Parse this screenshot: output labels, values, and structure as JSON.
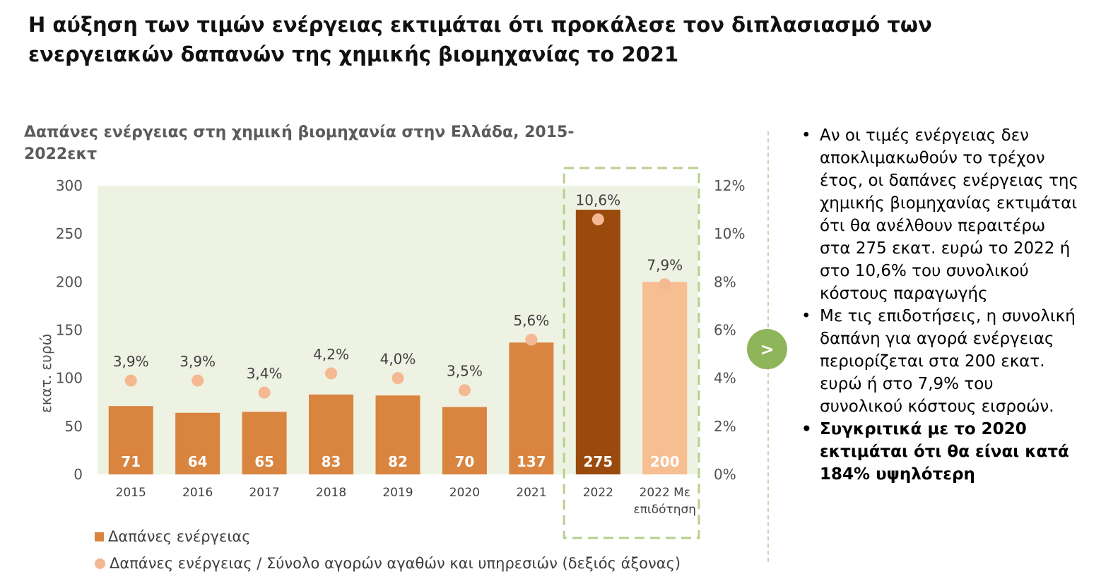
{
  "title": "Η αύξηση των τιμών ενέργειας εκτιμάται ότι προκάλεσε τον διπλασιασμό των ενεργειακών δαπανών της χημικής βιομηχανίας το 2021",
  "colors": {
    "bar": "#d9843f",
    "bar_highlight": "#9b4a0d",
    "bar_subsidy": "#f7be92",
    "dot": "#f4b893",
    "plot_bg": "#eef2e2",
    "highlight_border": "#b7cf8e",
    "accent": "#8fb55a"
  },
  "chart_data": {
    "type": "bar",
    "title": "Δαπάνες ενέργειας στη χημική βιομηχανία στην Ελλάδα, 2015-2022εκτ",
    "ylabel": "εκατ. ευρώ",
    "ylim": [
      0,
      300
    ],
    "yticks": [
      0,
      50,
      100,
      150,
      200,
      250,
      300
    ],
    "y2lim": [
      0,
      12
    ],
    "y2ticks": [
      "0%",
      "2%",
      "4%",
      "6%",
      "8%",
      "10%",
      "12%"
    ],
    "categories": [
      "2015",
      "2016",
      "2017",
      "2018",
      "2019",
      "2020",
      "2021",
      "2022",
      "2022 Με επιδότηση"
    ],
    "series": [
      {
        "name": "Δαπάνες ενέργειας",
        "axis": "left",
        "type": "bar",
        "values": [
          71,
          64,
          65,
          83,
          82,
          70,
          137,
          275,
          200
        ],
        "labels": [
          "71",
          "64",
          "65",
          "83",
          "82",
          "70",
          "137",
          "275",
          "200"
        ]
      },
      {
        "name": "Δαπάνες ενέργειας / Σύνολο αγορών αγαθών και υπηρεσιών (δεξιός άξονας)",
        "axis": "right",
        "type": "scatter",
        "values": [
          3.9,
          3.9,
          3.4,
          4.2,
          4.0,
          3.5,
          5.6,
          10.6,
          7.9
        ],
        "labels": [
          "3,9%",
          "3,9%",
          "3,4%",
          "4,2%",
          "4,0%",
          "3,5%",
          "5,6%",
          "10,6%",
          "7,9%"
        ]
      }
    ],
    "highlight": [
      "2022",
      "2022 Με επιδότηση"
    ],
    "legend_position": "bottom-left"
  },
  "arrow_label": ">",
  "bullets": [
    {
      "text": "Αν οι τιμές ενέργειας δεν αποκλιμακωθούν το τρέχον έτος, οι δαπάνες ενέργειας της χημικής βιομηχανίας εκτιμάται ότι θα ανέλθουν περαιτέρω στα 275 εκατ. ευρώ το 2022 ή στο 10,6% του συνολικού κόστους παραγωγής",
      "bold": false
    },
    {
      "text": "Με τις επιδοτήσεις, η συνολική δαπάνη για αγορά ενέργειας περιορίζεται στα 200 εκατ. ευρώ ή στο 7,9% του συνολικού κόστους εισροών.",
      "bold": false
    },
    {
      "text": "Συγκριτικά με το 2020 εκτιμάται ότι θα είναι κατά 184% υψηλότερη",
      "bold": true
    }
  ]
}
